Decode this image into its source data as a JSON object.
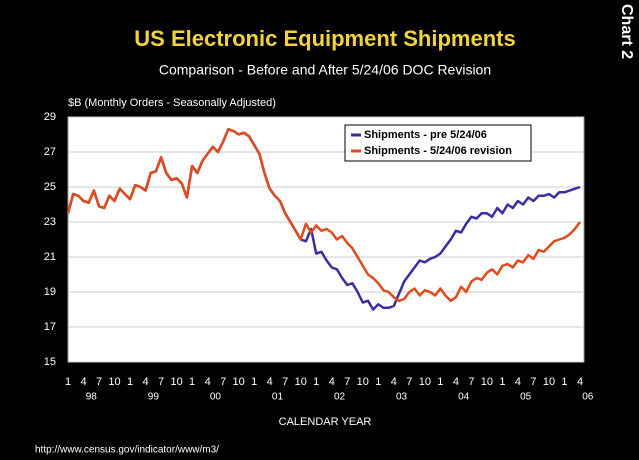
{
  "side_label": "Chart 2",
  "footer": "http://www.census.gov/indicator/www/m3/",
  "chart_data": {
    "type": "line",
    "title": "US Electronic Equipment Shipments",
    "subtitle": "Comparison - Before and After 5/24/06 DOC Revision",
    "y_axis_label": "$B (Monthly Orders - Seasonally Adjusted)",
    "x_axis_label": "CALENDAR YEAR",
    "categories": [
      "1",
      null,
      null,
      "4",
      null,
      null,
      "7",
      null,
      null,
      "10",
      null,
      null,
      "1",
      null,
      null,
      "4",
      null,
      null,
      "7",
      null,
      null,
      "10",
      null,
      null,
      "1",
      null,
      null,
      "4",
      null,
      null,
      "7",
      null,
      null,
      "10",
      null,
      null,
      "1",
      null,
      null,
      "4",
      null,
      null,
      "7",
      null,
      null,
      "10",
      null,
      null,
      "1",
      null,
      null,
      "4",
      null,
      null,
      "7",
      null,
      null,
      "10",
      null,
      null,
      "1",
      null,
      null,
      "4",
      null,
      null,
      "7",
      null,
      null,
      "10",
      null,
      null,
      "1",
      null,
      null,
      "4",
      null,
      null,
      "7",
      null,
      null,
      "10",
      null,
      null,
      "1",
      null,
      null,
      "4",
      null,
      null,
      "7",
      null,
      null,
      "10",
      null,
      null,
      "1",
      null,
      null,
      "4"
    ],
    "groups": [
      "98",
      "99",
      "00",
      "01",
      "02",
      "03",
      "04",
      "05",
      "06"
    ],
    "ylim": [
      15,
      29
    ],
    "yticks": [
      15,
      17,
      19,
      21,
      23,
      25,
      27,
      29
    ],
    "grid": true,
    "legend": "upper right",
    "series": [
      {
        "name": "Shipments - pre 5/24/06",
        "color": "#3a2ea3",
        "values": [
          23.5,
          24.6,
          24.5,
          24.2,
          24.1,
          24.8,
          23.9,
          23.8,
          24.5,
          24.2,
          24.9,
          24.6,
          24.3,
          25.1,
          25.0,
          24.8,
          25.8,
          25.9,
          26.7,
          25.8,
          25.4,
          25.5,
          25.2,
          24.4,
          26.2,
          25.8,
          26.5,
          26.9,
          27.3,
          27.0,
          27.6,
          28.3,
          28.2,
          28.0,
          28.1,
          27.9,
          27.4,
          26.9,
          25.8,
          24.9,
          24.5,
          24.2,
          23.5,
          23.0,
          22.5,
          22.0,
          21.9,
          22.6,
          21.2,
          21.3,
          20.8,
          20.4,
          20.3,
          19.8,
          19.4,
          19.5,
          19.0,
          18.4,
          18.5,
          18.0,
          18.3,
          18.1,
          18.1,
          18.2,
          18.9,
          19.6,
          20.0,
          20.4,
          20.8,
          20.7,
          20.9,
          21.0,
          21.2,
          21.6,
          22.0,
          22.5,
          22.4,
          22.9,
          23.3,
          23.2,
          23.5,
          23.5,
          23.3,
          23.8,
          23.5,
          24.0,
          23.8,
          24.2,
          24.0,
          24.4,
          24.2,
          24.5,
          24.5,
          24.6,
          24.4,
          24.7,
          24.7,
          24.8,
          24.9,
          25.0
        ]
      },
      {
        "name": "Shipments - 5/24/06 revision",
        "color": "#e04b1c",
        "values": [
          23.5,
          24.6,
          24.5,
          24.2,
          24.1,
          24.8,
          23.9,
          23.8,
          24.5,
          24.2,
          24.9,
          24.6,
          24.3,
          25.1,
          25.0,
          24.8,
          25.8,
          25.9,
          26.7,
          25.8,
          25.4,
          25.5,
          25.2,
          24.4,
          26.2,
          25.8,
          26.5,
          26.9,
          27.3,
          27.0,
          27.6,
          28.3,
          28.2,
          28.0,
          28.1,
          27.9,
          27.4,
          26.9,
          25.8,
          24.9,
          24.5,
          24.2,
          23.5,
          23.0,
          22.5,
          22.0,
          22.9,
          22.4,
          22.8,
          22.5,
          22.6,
          22.4,
          22.0,
          22.2,
          21.8,
          21.5,
          21.0,
          20.5,
          20.0,
          19.8,
          19.5,
          19.1,
          19.0,
          18.7,
          18.5,
          18.6,
          19.0,
          19.2,
          18.8,
          19.1,
          19.0,
          18.8,
          19.2,
          18.8,
          18.5,
          18.7,
          19.3,
          19.0,
          19.6,
          19.8,
          19.7,
          20.1,
          20.3,
          20.0,
          20.5,
          20.6,
          20.4,
          20.8,
          20.7,
          21.1,
          20.9,
          21.4,
          21.3,
          21.6,
          21.9,
          22.0,
          22.1,
          22.3,
          22.6,
          23.0
        ]
      }
    ]
  }
}
